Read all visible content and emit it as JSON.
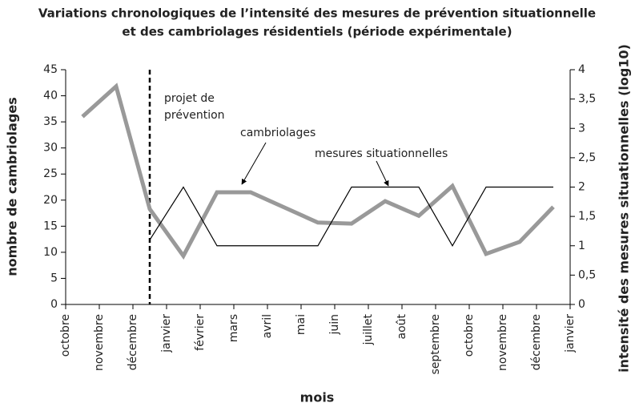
{
  "chart_data": {
    "type": "line",
    "title": [
      "Variations chronologiques de l’intensité des mesures de prévention situationnelle",
      "et des cambriolages résidentiels (période expérimentale)"
    ],
    "xlabel": "mois",
    "ylabel": "nombre de cambriolages",
    "y2label": "intensité des mesures situationnelles (log10)",
    "xticks": [
      "octobre",
      "novembre",
      "décembre",
      "janvier",
      "février",
      "mars",
      "avril",
      "mai",
      "juin",
      "juillet",
      "août",
      "septembre",
      "octobre",
      "novembre",
      "décembre",
      "janvier"
    ],
    "ylim": [
      0,
      45
    ],
    "yticks": [
      0,
      5,
      10,
      15,
      20,
      25,
      30,
      35,
      40,
      45
    ],
    "y2lim": [
      0,
      4
    ],
    "y2ticks": [
      0,
      {
        "value": 0.5,
        "label": "0,5"
      },
      1,
      {
        "value": 1.5,
        "label": "1,5"
      },
      2,
      {
        "value": 2.5,
        "label": "2,5"
      },
      3,
      {
        "value": 3.5,
        "label": "3,5"
      },
      4
    ],
    "series": [
      {
        "name": "cambriolages",
        "color": "#999999",
        "values": [
          36,
          41.8,
          18.3,
          9.3,
          21.5,
          21.5,
          18.6,
          15.7,
          15.5,
          19.8,
          17,
          22.7,
          9.7,
          12,
          18.7
        ]
      },
      {
        "name": "mesures situationnelles",
        "color": "#000000",
        "axis": "y2",
        "values": [
          null,
          null,
          1.1,
          2,
          1,
          1,
          1,
          1,
          2,
          2,
          2,
          1,
          2,
          2,
          2
        ]
      }
    ],
    "annotations": [
      "projet de",
      "prévention"
    ],
    "grid": false
  }
}
